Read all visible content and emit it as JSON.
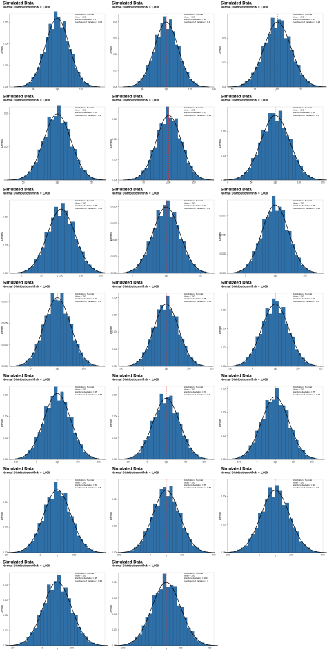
{
  "labels": {
    "title": "Simulated Data",
    "subtitle": "Normal Distribution with N = 1,000",
    "xlabel": "x",
    "ylabel": "Density"
  },
  "colors": {
    "bar": "#2f6fa7",
    "bar_edge": "#1b3f62",
    "curve": "#000000",
    "mean_line": "#e8322b",
    "axis": "#444444"
  },
  "chart_data": [
    {
      "type": "bar",
      "distribution": "Normal",
      "mean": 100,
      "sd": 5,
      "cv": "0.05",
      "annotation": [
        "Distribution : Normal",
        "Mean = 100",
        "Standard deviation = 5",
        "Coefficient of variation = 0.05"
      ],
      "xlim": [
        80,
        120
      ],
      "ylim": [
        0,
        0.085
      ],
      "xticks": [
        90,
        100,
        110
      ],
      "yticks": [
        0,
        0.025,
        0.05,
        0.075
      ],
      "ytick_labels": [
        "0.000",
        "0.025",
        "0.050",
        "0.075"
      ]
    },
    {
      "type": "bar",
      "distribution": "Normal",
      "mean": 100,
      "sd": 10,
      "cv": "0.1",
      "annotation": [
        "Distribution : Normal",
        "Mean = 100",
        "Standard deviation = 10",
        "Coefficient of variation = 0.1"
      ],
      "xlim": [
        60,
        140
      ],
      "ylim": [
        0,
        0.045
      ],
      "xticks": [
        80,
        100,
        120,
        140
      ],
      "yticks": [
        0,
        0.01,
        0.02,
        0.03,
        0.04
      ],
      "ytick_labels": [
        "0.00",
        "0.01",
        "0.02",
        "0.03",
        "0.04"
      ]
    },
    {
      "type": "bar",
      "distribution": "Normal",
      "mean": 100,
      "sd": 15,
      "cv": "0.15",
      "annotation": [
        "Distribution : Normal",
        "Mean = 100",
        "Standard deviation = 15",
        "Coefficient of variation = 0.15"
      ],
      "xlim": [
        45,
        150
      ],
      "ylim": [
        0,
        0.03
      ],
      "xticks": [
        50,
        75,
        100,
        125
      ],
      "yticks": [
        0,
        0.01,
        0.02
      ],
      "ytick_labels": [
        "0.00",
        "0.01",
        "0.02"
      ]
    },
    {
      "type": "bar",
      "distribution": "Normal",
      "mean": 100,
      "sd": 20,
      "cv": "0.2",
      "annotation": [
        "Distribution : Normal",
        "Mean = 100",
        "Standard deviation = 20",
        "Coefficient of variation = 0.2"
      ],
      "xlim": [
        30,
        170
      ],
      "ylim": [
        0,
        0.022
      ],
      "xticks": [
        50,
        100,
        150
      ],
      "yticks": [
        0,
        0.01,
        0.02
      ],
      "ytick_labels": [
        "0.00",
        "0.01",
        "0.02"
      ]
    },
    {
      "type": "bar",
      "distribution": "Normal",
      "mean": 100,
      "sd": 25,
      "cv": "0.25",
      "annotation": [
        "Distribution : Normal",
        "Mean = 100",
        "Standard deviation = 25",
        "Coefficient of variation = 0.25"
      ],
      "xlim": [
        0,
        190
      ],
      "ylim": [
        0,
        0.018
      ],
      "xticks": [
        0,
        50,
        100,
        150
      ],
      "yticks": [
        0,
        0.005,
        0.01,
        0.015
      ],
      "ytick_labels": [
        "0.000",
        "0.005",
        "0.010",
        "0.015"
      ]
    },
    {
      "type": "bar",
      "distribution": "Normal",
      "mean": 100,
      "sd": 30,
      "cv": "0.3",
      "annotation": [
        "Distribution : Normal",
        "Mean = 100",
        "Standard deviation = 30",
        "Coefficient of variation = 0.3"
      ],
      "xlim": [
        0,
        200
      ],
      "ylim": [
        0,
        0.015
      ],
      "xticks": [
        0,
        50,
        100,
        150,
        200
      ],
      "yticks": [
        0,
        0.005,
        0.01
      ],
      "ytick_labels": [
        "0.000",
        "0.005",
        "0.010"
      ]
    },
    {
      "type": "bar",
      "distribution": "Normal",
      "mean": 100,
      "sd": 35,
      "cv": "0.35",
      "annotation": [
        "Distribution : Normal",
        "Mean = 100",
        "Standard deviation = 35",
        "Coefficient of variation = 0.35"
      ],
      "xlim": [
        -30,
        210
      ],
      "ylim": [
        0,
        0.013
      ],
      "xticks": [
        0,
        50,
        100,
        150,
        200
      ],
      "yticks": [
        0,
        0.005,
        0.01
      ],
      "ytick_labels": [
        "0.000",
        "0.005",
        "0.010"
      ]
    },
    {
      "type": "bar",
      "distribution": "Normal",
      "mean": 100,
      "sd": 40,
      "cv": "0.4",
      "annotation": [
        "Distribution : Normal",
        "Mean = 100",
        "Standard deviation = 40",
        "Coefficient of variation = 0.4"
      ],
      "xlim": [
        -40,
        240
      ],
      "ylim": [
        0,
        0.011
      ],
      "xticks": [
        0,
        100,
        200
      ],
      "yticks": [
        0,
        0.0025,
        0.005,
        0.0075,
        0.01
      ],
      "ytick_labels": [
        "0.0000",
        "0.0025",
        "0.0050",
        "0.0075",
        "0.0100"
      ]
    },
    {
      "type": "bar",
      "distribution": "Normal",
      "mean": 100,
      "sd": 45,
      "cv": "0.45",
      "annotation": [
        "Distribution : Normal",
        "Mean = 100",
        "Standard deviation = 45",
        "Coefficient of variation = 0.45"
      ],
      "xlim": [
        -60,
        260
      ],
      "ylim": [
        0,
        0.0095
      ],
      "xticks": [
        0,
        100,
        200
      ],
      "yticks": [
        0,
        0.0025,
        0.005,
        0.0075
      ],
      "ytick_labels": [
        "0.0000",
        "0.0025",
        "0.0050",
        "0.0075"
      ]
    },
    {
      "type": "bar",
      "distribution": "Normal",
      "mean": 100,
      "sd": 50,
      "cv": "0.5",
      "annotation": [
        "Distribution : Normal",
        "Mean = 100",
        "Standard deviation = 50",
        "Coefficient of variation = 0.5"
      ],
      "xlim": [
        -80,
        280
      ],
      "ylim": [
        0,
        0.0085
      ],
      "xticks": [
        0,
        100,
        200
      ],
      "yticks": [
        0,
        0.0025,
        0.005,
        0.0075
      ],
      "ytick_labels": [
        "0.0000",
        "0.0025",
        "0.0050",
        "0.0075"
      ]
    },
    {
      "type": "bar",
      "distribution": "Normal",
      "mean": 100,
      "sd": 55,
      "cv": "0.55",
      "annotation": [
        "Distribution : Normal",
        "Mean = 100",
        "Standard deviation = 55",
        "Coefficient of variation = 0.55"
      ],
      "xlim": [
        -110,
        310
      ],
      "ylim": [
        0,
        0.0085
      ],
      "xticks": [
        -100,
        0,
        100,
        200,
        300
      ],
      "yticks": [
        0,
        0.002,
        0.004,
        0.006,
        0.008
      ],
      "ytick_labels": [
        "0.000",
        "0.002",
        "0.004",
        "0.006",
        "0.008"
      ]
    },
    {
      "type": "bar",
      "distribution": "Normal",
      "mean": 100,
      "sd": 60,
      "cv": "0.6",
      "annotation": [
        "Distribution : Normal",
        "Mean = 100",
        "Standard deviation = 60",
        "Coefficient of variation = 0.6"
      ],
      "xlim": [
        -110,
        310
      ],
      "ylim": [
        0,
        0.0078
      ],
      "xticks": [
        -100,
        0,
        100,
        200,
        300
      ],
      "yticks": [
        0,
        0.002,
        0.004,
        0.006
      ],
      "ytick_labels": [
        "0.000",
        "0.002",
        "0.004",
        "0.006"
      ]
    },
    {
      "type": "bar",
      "distribution": "Normal",
      "mean": 100,
      "sd": 65,
      "cv": "0.65",
      "annotation": [
        "Distribution : Normal",
        "Mean = 100",
        "Standard deviation = 65",
        "Coefficient of variation = 0.65"
      ],
      "xlim": [
        -130,
        330
      ],
      "ylim": [
        0,
        0.0068
      ],
      "xticks": [
        -100,
        0,
        100,
        200,
        300
      ],
      "yticks": [
        0,
        0.002,
        0.004,
        0.006
      ],
      "ytick_labels": [
        "0.000",
        "0.002",
        "0.004",
        "0.006"
      ]
    },
    {
      "type": "bar",
      "distribution": "Normal",
      "mean": 100,
      "sd": 70,
      "cv": "0.7",
      "annotation": [
        "Distribution : Normal",
        "Mean = 100",
        "Standard deviation = 70",
        "Coefficient of variation = 0.7"
      ],
      "xlim": [
        -150,
        350
      ],
      "ylim": [
        0,
        0.0068
      ],
      "xticks": [
        -100,
        0,
        100,
        200,
        300
      ],
      "yticks": [
        0,
        0.002,
        0.004,
        0.006
      ],
      "ytick_labels": [
        "0.000",
        "0.002",
        "0.004",
        "0.006"
      ]
    },
    {
      "type": "bar",
      "distribution": "Normal",
      "mean": 100,
      "sd": 75,
      "cv": "0.75",
      "annotation": [
        "Distribution : Normal",
        "Mean = 100",
        "Standard deviation = 75",
        "Coefficient of variation = 0.75"
      ],
      "xlim": [
        -160,
        360
      ],
      "ylim": [
        0,
        0.0062
      ],
      "xticks": [
        -100,
        0,
        100,
        200,
        300
      ],
      "yticks": [
        0,
        0.002,
        0.004,
        0.006
      ],
      "ytick_labels": [
        "0.000",
        "0.002",
        "0.004",
        "0.006"
      ]
    },
    {
      "type": "bar",
      "distribution": "Normal",
      "mean": 100,
      "sd": 80,
      "cv": "0.8",
      "annotation": [
        "Distribution : Normal",
        "Mean = 100",
        "Standard deviation = 80",
        "Coefficient of variation = 0.8"
      ],
      "xlim": [
        -180,
        380
      ],
      "ylim": [
        0,
        0.0058
      ],
      "xticks": [
        -200,
        0,
        200
      ],
      "yticks": [
        0,
        0.002,
        0.004
      ],
      "ytick_labels": [
        "0.000",
        "0.002",
        "0.004"
      ]
    },
    {
      "type": "bar",
      "distribution": "Normal",
      "mean": 100,
      "sd": 85,
      "cv": "0.85",
      "annotation": [
        "Distribution : Normal",
        "Mean = 100",
        "Standard deviation = 85",
        "Coefficient of variation = 0.85"
      ],
      "xlim": [
        -200,
        400
      ],
      "ylim": [
        0,
        0.0055
      ],
      "xticks": [
        -200,
        0,
        200,
        400
      ],
      "yticks": [
        0,
        0.002,
        0.004
      ],
      "ytick_labels": [
        "0.000",
        "0.002",
        "0.004"
      ]
    },
    {
      "type": "bar",
      "distribution": "Normal",
      "mean": 100,
      "sd": 90,
      "cv": "0.9",
      "annotation": [
        "Distribution : Normal",
        "Mean = 100",
        "Standard deviation = 90",
        "Coefficient of variation = 0.9"
      ],
      "xlim": [
        -200,
        400
      ],
      "ylim": [
        0,
        0.0052
      ],
      "xticks": [
        -200,
        0,
        200,
        400
      ],
      "yticks": [
        0,
        0.002,
        0.004
      ],
      "ytick_labels": [
        "0.000",
        "0.002",
        "0.004"
      ]
    },
    {
      "type": "bar",
      "distribution": "Normal",
      "mean": 100,
      "sd": 95,
      "cv": "0.95",
      "annotation": [
        "Distribution : Normal",
        "Mean = 100",
        "Standard deviation = 95",
        "Coefficient of variation = 0.95"
      ],
      "xlim": [
        -220,
        420
      ],
      "ylim": [
        0,
        0.0048
      ],
      "xticks": [
        -200,
        0,
        200
      ],
      "yticks": [
        0,
        0.001,
        0.002,
        0.003,
        0.004
      ],
      "ytick_labels": [
        "0.000",
        "0.001",
        "0.002",
        "0.003",
        "0.004"
      ]
    },
    {
      "type": "bar",
      "distribution": "Normal",
      "mean": 100,
      "sd": 100,
      "cv": "1",
      "annotation": [
        "Distribution : Normal",
        "Mean = 100",
        "Standard deviation = 100",
        "Coefficient of variation = 1"
      ],
      "xlim": [
        -230,
        430
      ],
      "ylim": [
        0,
        0.0046
      ],
      "xticks": [
        -200,
        0,
        200,
        400
      ],
      "yticks": [
        0,
        0.001,
        0.002,
        0.003,
        0.004
      ],
      "ytick_labels": [
        "0.000",
        "0.001",
        "0.002",
        "0.003",
        "0.004"
      ]
    }
  ]
}
